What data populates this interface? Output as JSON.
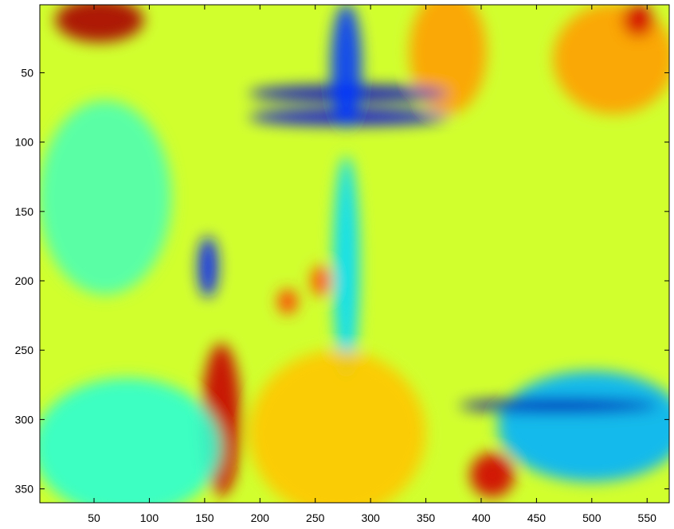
{
  "chart_data": {
    "type": "heatmap",
    "title": "",
    "xlabel": "",
    "ylabel": "",
    "xlim": [
      1,
      570
    ],
    "ylim": [
      1,
      360
    ],
    "y_reversed": true,
    "colormap": "jet",
    "grid": false,
    "x_ticks": [
      50,
      100,
      150,
      200,
      250,
      300,
      350,
      400,
      450,
      500,
      550
    ],
    "x_tick_labels": [
      "50",
      "100",
      "150",
      "200",
      "250",
      "300",
      "350",
      "400",
      "450",
      "500",
      "550"
    ],
    "y_ticks": [
      50,
      100,
      150,
      200,
      250,
      300,
      350
    ],
    "y_tick_labels": [
      "50",
      "100",
      "150",
      "200",
      "250",
      "300",
      "350"
    ],
    "image_base_value": 0.58,
    "features": [
      {
        "label": "red-corner-top-left",
        "x": 55,
        "y": 12,
        "rx": 40,
        "ry": 16,
        "value": 0.96
      },
      {
        "label": "orange-top-mid",
        "x": 370,
        "y": 35,
        "rx": 35,
        "ry": 45,
        "value": 0.72
      },
      {
        "label": "orange-top-right",
        "x": 520,
        "y": 40,
        "rx": 55,
        "ry": 40,
        "value": 0.72
      },
      {
        "label": "red-top-right",
        "x": 542,
        "y": 12,
        "rx": 14,
        "ry": 12,
        "value": 0.92
      },
      {
        "label": "blue-streak-upper",
        "x": 280,
        "y": 65,
        "rx": 90,
        "ry": 6,
        "value": 0.08
      },
      {
        "label": "blue-streak-lower",
        "x": 280,
        "y": 82,
        "rx": 90,
        "ry": 6,
        "value": 0.1
      },
      {
        "label": "blue-column",
        "x": 278,
        "y": 45,
        "rx": 14,
        "ry": 45,
        "value": 0.18
      },
      {
        "label": "cyan-column",
        "x": 278,
        "y": 190,
        "rx": 12,
        "ry": 80,
        "value": 0.34
      },
      {
        "label": "blue-spot-mid",
        "x": 153,
        "y": 190,
        "rx": 9,
        "ry": 22,
        "value": 0.15
      },
      {
        "label": "cyan-left-band",
        "x": 60,
        "y": 140,
        "rx": 60,
        "ry": 70,
        "value": 0.45
      },
      {
        "label": "orange-spot",
        "x": 225,
        "y": 215,
        "rx": 9,
        "ry": 9,
        "value": 0.82
      },
      {
        "label": "orange-spot-2",
        "x": 255,
        "y": 200,
        "rx": 9,
        "ry": 11,
        "value": 0.8
      },
      {
        "label": "red-diagonal-ridge",
        "x": 165,
        "y": 300,
        "rx": 18,
        "ry": 55,
        "value": 0.93
      },
      {
        "label": "cyan-bottom-left",
        "x": 80,
        "y": 320,
        "rx": 85,
        "ry": 50,
        "value": 0.42
      },
      {
        "label": "yellow-bottom-mid",
        "x": 270,
        "y": 310,
        "rx": 80,
        "ry": 60,
        "value": 0.68
      },
      {
        "label": "blue-region-bottom-right",
        "x": 500,
        "y": 305,
        "rx": 85,
        "ry": 40,
        "value": 0.3
      },
      {
        "label": "dark-blue-diagonal",
        "x": 470,
        "y": 290,
        "rx": 90,
        "ry": 5,
        "value": 0.05
      },
      {
        "label": "red-streaks-bottom",
        "x": 410,
        "y": 340,
        "rx": 20,
        "ry": 16,
        "value": 0.92
      }
    ]
  }
}
